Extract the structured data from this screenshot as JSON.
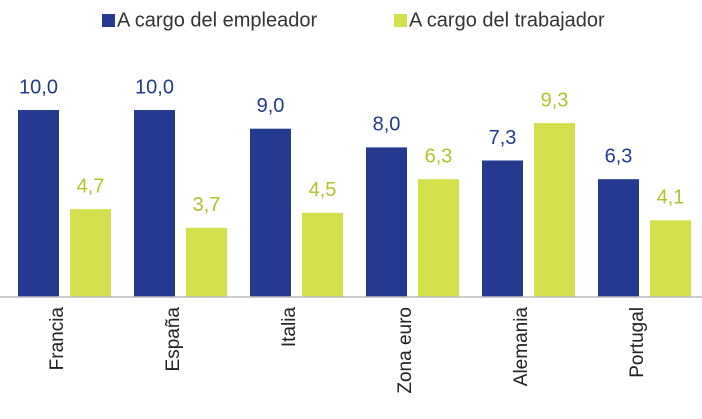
{
  "chart_data": {
    "type": "bar",
    "categories": [
      "Francia",
      "España",
      "Italia",
      "Zona euro",
      "Alemania",
      "Portugal"
    ],
    "series": [
      {
        "name": "A cargo del empleador",
        "color": "#233a8e",
        "label_color": "#233a8e",
        "values": [
          10.0,
          10.0,
          9.0,
          8.0,
          7.3,
          6.3
        ],
        "value_labels": [
          "10,0",
          "10,0",
          "9,0",
          "8,0",
          "7,3",
          "6,3"
        ]
      },
      {
        "name": "A cargo del trabajador",
        "color": "#d4e04b",
        "label_color": "#b5c12e",
        "values": [
          4.7,
          3.7,
          4.5,
          6.3,
          9.3,
          4.1
        ],
        "value_labels": [
          "4,7",
          "3,7",
          "4,5",
          "6,3",
          "9,3",
          "4,1"
        ]
      }
    ],
    "legend": "top"
  }
}
